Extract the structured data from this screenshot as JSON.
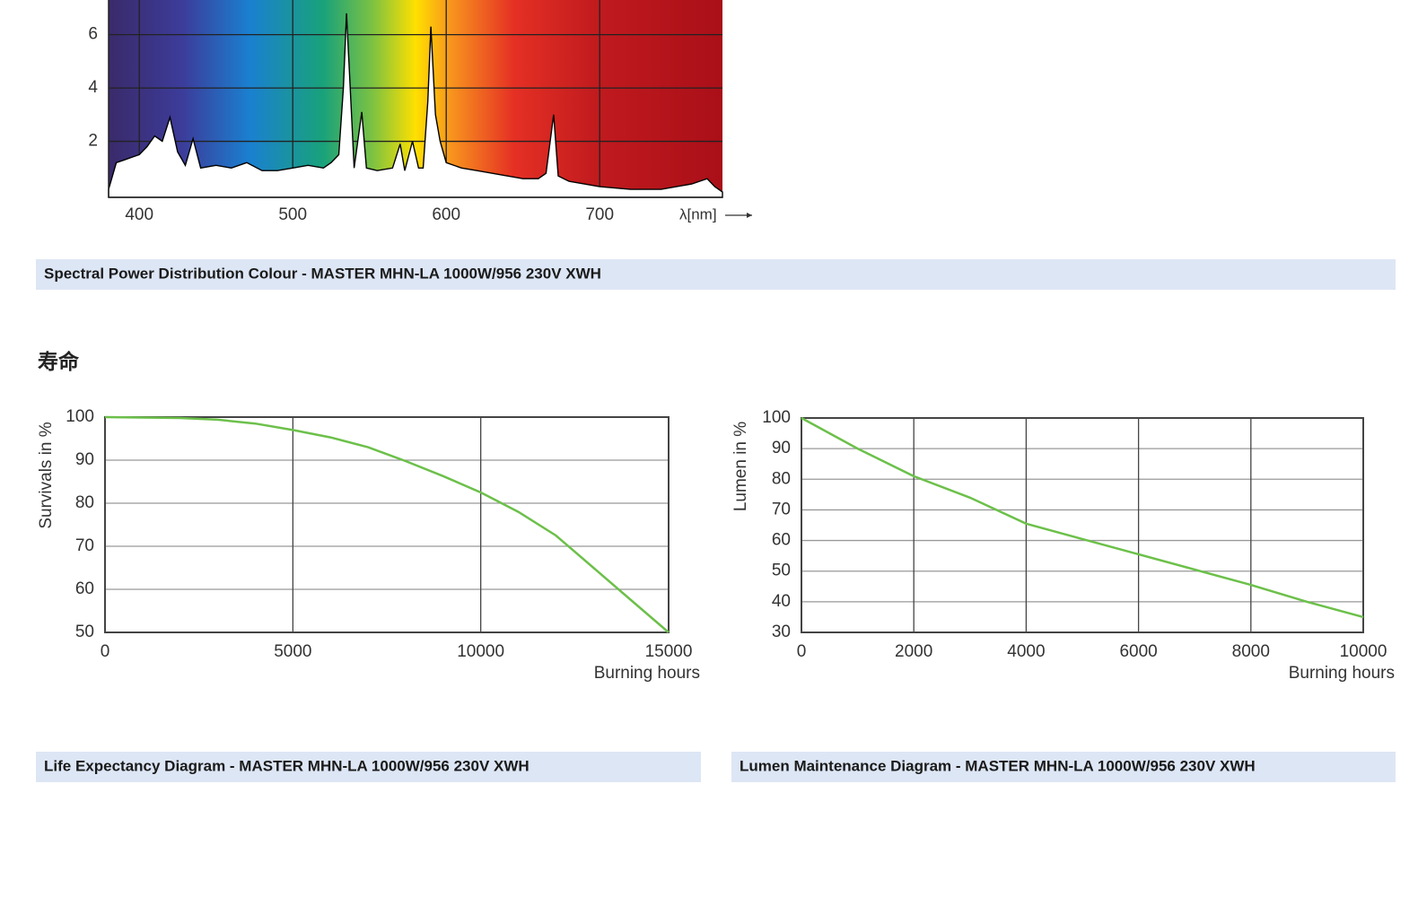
{
  "section_heading": "寿命",
  "chart_data": [
    {
      "type": "area",
      "caption": "Spectral Power Distribution Colour - MASTER MHN-LA 1000W/956 230V XWH",
      "xlabel": "λ[nm]",
      "x": [
        380,
        385,
        390,
        395,
        400,
        405,
        410,
        415,
        420,
        425,
        430,
        435,
        440,
        450,
        460,
        470,
        480,
        490,
        500,
        510,
        520,
        525,
        530,
        533,
        535,
        537,
        540,
        545,
        548,
        555,
        565,
        570,
        573,
        578,
        582,
        585,
        588,
        590,
        593,
        596,
        600,
        610,
        620,
        630,
        640,
        650,
        660,
        665,
        670,
        673,
        680,
        690,
        700,
        720,
        740,
        760,
        770,
        775,
        780
      ],
      "values": [
        0.2,
        1.2,
        1.3,
        1.4,
        1.5,
        1.8,
        2.2,
        2.0,
        2.9,
        1.6,
        1.1,
        2.1,
        1.0,
        1.1,
        1.0,
        1.2,
        0.9,
        0.9,
        1.0,
        1.1,
        1.0,
        1.2,
        1.5,
        4.0,
        6.8,
        4.5,
        1.0,
        3.1,
        1.0,
        0.9,
        1.0,
        1.9,
        0.9,
        2.0,
        1.0,
        1.0,
        3.5,
        6.3,
        3.0,
        2.0,
        1.2,
        1.0,
        0.9,
        0.8,
        0.7,
        0.6,
        0.6,
        0.8,
        3.0,
        0.7,
        0.5,
        0.4,
        0.3,
        0.2,
        0.2,
        0.4,
        0.6,
        0.3,
        0.1
      ],
      "color": "#000000",
      "xlim": [
        380,
        780
      ],
      "ylim": [
        0,
        7.3
      ],
      "xticks": [
        400,
        500,
        600,
        700
      ],
      "yticks": [
        2,
        4,
        6
      ],
      "grid": true
    },
    {
      "type": "line",
      "caption": "Life Expectancy Diagram - MASTER MHN-LA 1000W/956 230V XWH",
      "xlabel": "Burning hours",
      "ylabel": "Survivals in %",
      "x": [
        0,
        2000,
        3000,
        4000,
        5000,
        6000,
        7000,
        8000,
        9000,
        10000,
        11000,
        12000,
        13000,
        14000,
        15000
      ],
      "values": [
        100,
        99.8,
        99.4,
        98.5,
        97,
        95.3,
        93,
        89.8,
        86.3,
        82.5,
        78,
        72.5,
        65,
        57.5,
        50
      ],
      "color": "#6cc04a",
      "xlim": [
        0,
        15000
      ],
      "ylim": [
        50,
        100
      ],
      "xticks": [
        0,
        5000,
        10000,
        15000
      ],
      "yticks": [
        50,
        60,
        70,
        80,
        90,
        100
      ],
      "grid": true
    },
    {
      "type": "line",
      "caption": "Lumen Maintenance Diagram - MASTER MHN-LA 1000W/956 230V XWH",
      "xlabel": "Burning hours",
      "ylabel": "Lumen in %",
      "x": [
        0,
        1000,
        2000,
        3000,
        4000,
        5000,
        6000,
        7000,
        8000,
        9000,
        10000
      ],
      "values": [
        100,
        90,
        81,
        74,
        65.5,
        60.5,
        55.5,
        50.5,
        45.5,
        40,
        35
      ],
      "color": "#6cc04a",
      "xlim": [
        0,
        10000
      ],
      "ylim": [
        30,
        100
      ],
      "xticks": [
        0,
        2000,
        4000,
        6000,
        8000,
        10000
      ],
      "yticks": [
        30,
        40,
        50,
        60,
        70,
        80,
        90,
        100
      ],
      "grid": true
    }
  ]
}
